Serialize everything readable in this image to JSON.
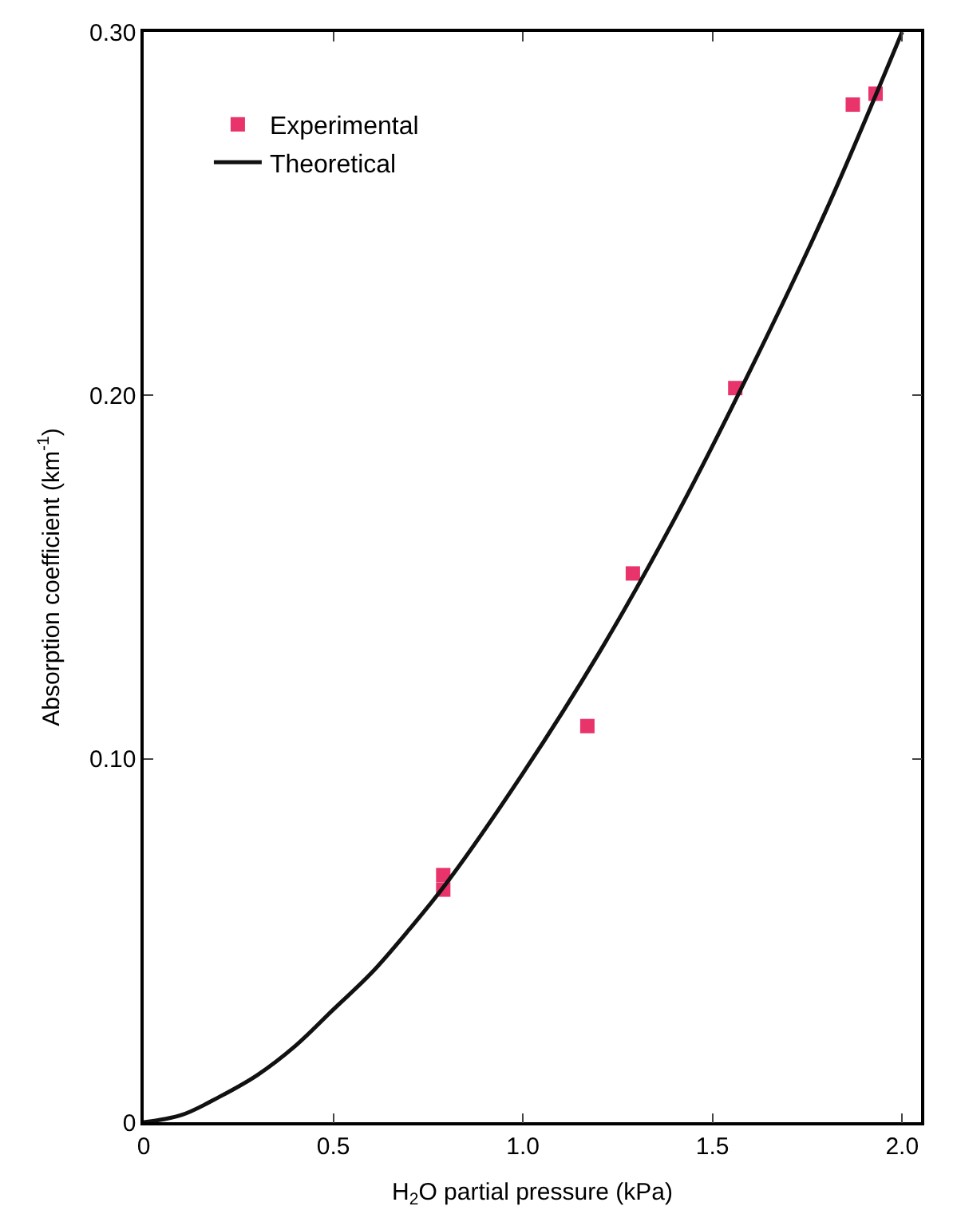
{
  "chart_data": {
    "type": "scatter",
    "xlabel": "H$_{2}$O partial pressure (kPa)",
    "ylabel": "Absorption coefficient (km$^{-1}$)",
    "xlim": [
      0,
      2.05
    ],
    "ylim": [
      0,
      0.3
    ],
    "xticks": [
      0,
      0.5,
      {
        "value": 1,
        "label": "1.0"
      },
      1.5,
      {
        "value": 2,
        "label": "2.0"
      }
    ],
    "yticks": [
      0,
      {
        "value": 0.1,
        "label": "0.10"
      },
      {
        "value": 0.2,
        "label": "0.20"
      },
      {
        "value": 0.3,
        "label": "0.30"
      }
    ],
    "legend": "top left",
    "series": [
      {
        "name": "Experimental",
        "marker": "square",
        "color": "#e8336b",
        "x": [
          0.79,
          0.79,
          1.17,
          1.29,
          1.56,
          1.87,
          1.93
        ],
        "values": [
          0.068,
          0.064,
          0.109,
          0.151,
          0.202,
          0.28,
          0.283
        ]
      },
      {
        "name": "Theoretical",
        "type": "line",
        "marker": "none",
        "line_style": "solid",
        "color": "#111111",
        "x": [
          0,
          0.1,
          0.2,
          0.3,
          0.4,
          0.5,
          0.6,
          0.7,
          0.8,
          1.0,
          1.2,
          1.4,
          1.6,
          1.8,
          2.0
        ],
        "values": [
          0,
          0.002,
          0.007,
          0.013,
          0.021,
          0.031,
          0.041,
          0.053,
          0.066,
          0.096,
          0.129,
          0.166,
          0.207,
          0.251,
          0.3
        ]
      }
    ]
  }
}
